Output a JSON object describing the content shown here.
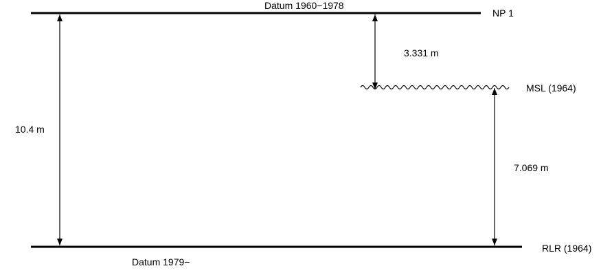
{
  "diagram": {
    "top_datum": {
      "name": "NP 1",
      "caption": "Datum 1960−1978"
    },
    "bottom_datum": {
      "name": "RLR (1964)",
      "caption": "Datum 1979−"
    },
    "mean_sea_level": {
      "name": "MSL (1964)"
    },
    "distances": {
      "total": "10.4 m",
      "np1_to_msl": "3.331 m",
      "msl_to_rlr": "7.069 m"
    },
    "colors": {
      "line": "#000000",
      "background": "#ffffff"
    }
  }
}
